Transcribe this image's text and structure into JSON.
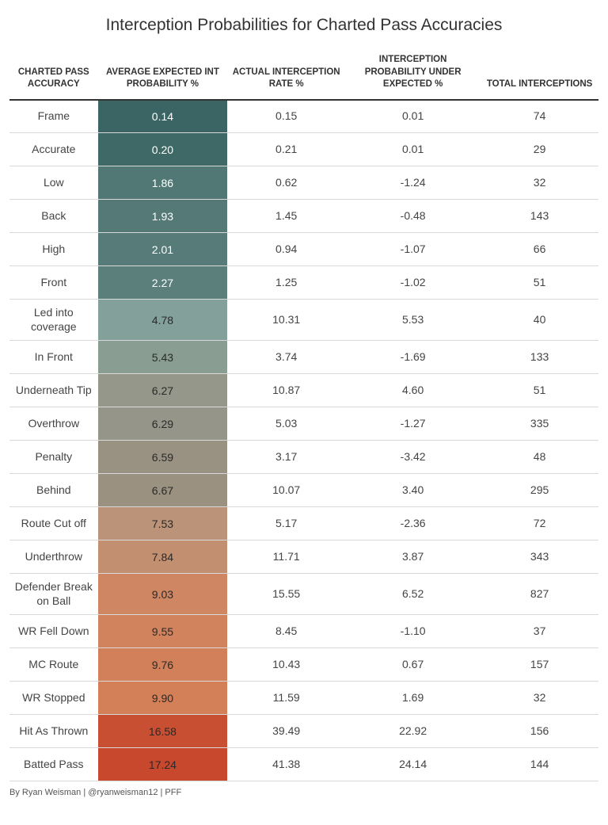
{
  "title": "Interception Probabilities for Charted Pass Accuracies",
  "credit": "By Ryan Weisman | @ryanweisman12 | PFF",
  "headers": {
    "c0": "CHARTED PASS ACCURACY",
    "c1": "AVERAGE EXPECTED INT PROBABILITY %",
    "c2": "ACTUAL INTERCEPTION RATE %",
    "c3": "INTERCEPTION PROBABILITY UNDER EXPECTED %",
    "c4": "TOTAL INTERCEPTIONS"
  },
  "style": {
    "title_fontsize": 21,
    "header_fontsize": 11.5,
    "body_fontsize": 14,
    "credit_fontsize": 11,
    "background": "#ffffff",
    "text_color": "#333333",
    "row_border_color": "#d9d9d9",
    "header_border_color": "#333333",
    "heat_text_light": "#ffffff",
    "heat_text_dark": "#2a2a2a",
    "dark_text_threshold_index": 6
  },
  "rows": [
    {
      "accuracy": "Frame",
      "exp": "0.14",
      "actual": "0.15",
      "diff": "0.01",
      "total": "74",
      "heat": "#3b6564"
    },
    {
      "accuracy": "Accurate",
      "exp": "0.20",
      "actual": "0.21",
      "diff": "0.01",
      "total": "29",
      "heat": "#3f6967"
    },
    {
      "accuracy": "Low",
      "exp": "1.86",
      "actual": "0.62",
      "diff": "-1.24",
      "total": "32",
      "heat": "#527875"
    },
    {
      "accuracy": "Back",
      "exp": "1.93",
      "actual": "1.45",
      "diff": "-0.48",
      "total": "143",
      "heat": "#547976"
    },
    {
      "accuracy": "High",
      "exp": "2.01",
      "actual": "0.94",
      "diff": "-1.07",
      "total": "66",
      "heat": "#567b78"
    },
    {
      "accuracy": "Front",
      "exp": "2.27",
      "actual": "1.25",
      "diff": "-1.02",
      "total": "51",
      "heat": "#5b807c"
    },
    {
      "accuracy": "Led into coverage",
      "exp": "4.78",
      "actual": "10.31",
      "diff": "5.53",
      "total": "40",
      "heat": "#83a09a"
    },
    {
      "accuracy": "In Front",
      "exp": "5.43",
      "actual": "3.74",
      "diff": "-1.69",
      "total": "133",
      "heat": "#8a9d93"
    },
    {
      "accuracy": "Underneath Tip",
      "exp": "6.27",
      "actual": "10.87",
      "diff": "4.60",
      "total": "51",
      "heat": "#94978a"
    },
    {
      "accuracy": "Overthrow",
      "exp": "6.29",
      "actual": "5.03",
      "diff": "-1.27",
      "total": "335",
      "heat": "#959689"
    },
    {
      "accuracy": "Penalty",
      "exp": "6.59",
      "actual": "3.17",
      "diff": "-3.42",
      "total": "48",
      "heat": "#999283"
    },
    {
      "accuracy": "Behind",
      "exp": "6.67",
      "actual": "10.07",
      "diff": "3.40",
      "total": "295",
      "heat": "#9a9181"
    },
    {
      "accuracy": "Route Cut off",
      "exp": "7.53",
      "actual": "5.17",
      "diff": "-2.36",
      "total": "72",
      "heat": "#ba9378"
    },
    {
      "accuracy": "Underthrow",
      "exp": "7.84",
      "actual": "11.71",
      "diff": "3.87",
      "total": "343",
      "heat": "#c28f70"
    },
    {
      "accuracy": "Defender Break on Ball",
      "exp": "9.03",
      "actual": "15.55",
      "diff": "6.52",
      "total": "827",
      "heat": "#cf8763"
    },
    {
      "accuracy": "WR Fell Down",
      "exp": "9.55",
      "actual": "8.45",
      "diff": "-1.10",
      "total": "37",
      "heat": "#d1835d"
    },
    {
      "accuracy": "MC Route",
      "exp": "9.76",
      "actual": "10.43",
      "diff": "0.67",
      "total": "157",
      "heat": "#d28059"
    },
    {
      "accuracy": "WR Stopped",
      "exp": "9.90",
      "actual": "11.59",
      "diff": "1.69",
      "total": "32",
      "heat": "#d37f57"
    },
    {
      "accuracy": "Hit As Thrown",
      "exp": "16.58",
      "actual": "39.49",
      "diff": "22.92",
      "total": "156",
      "heat": "#c94f33"
    },
    {
      "accuracy": "Batted Pass",
      "exp": "17.24",
      "actual": "41.38",
      "diff": "24.14",
      "total": "144",
      "heat": "#c7482d"
    }
  ]
}
